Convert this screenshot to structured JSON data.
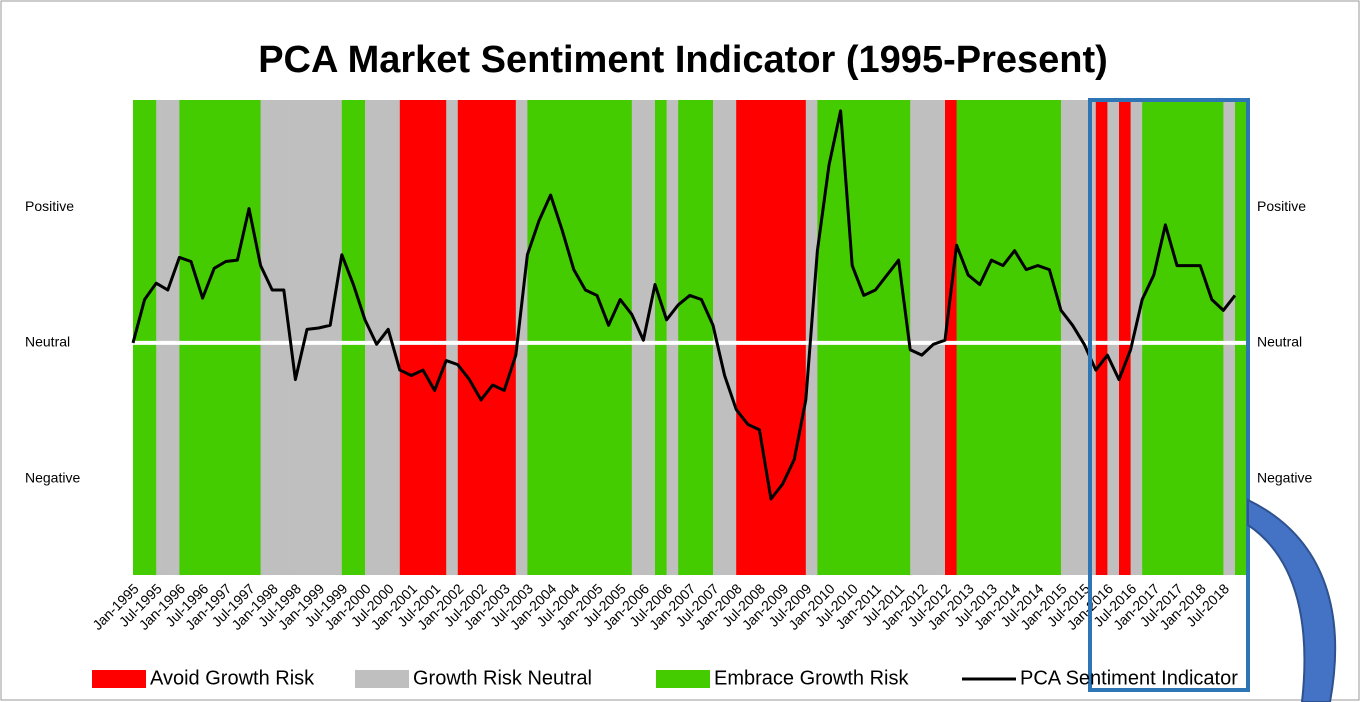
{
  "chart_data": {
    "type": "line",
    "title": "PCA Market Sentiment Indicator   (1995-Present)",
    "categories": [
      "Jan-1995",
      null,
      "Jul-1995",
      null,
      "Jan-1996",
      null,
      "Jul-1996",
      null,
      "Jan-1997",
      null,
      "Jul-1997",
      null,
      "Jan-1998",
      null,
      "Jul-1998",
      null,
      "Jan-1999",
      null,
      "Jul-1999",
      null,
      "Jan-2000",
      null,
      "Jul-2000",
      null,
      "Jan-2001",
      null,
      "Jul-2001",
      null,
      "Jan-2002",
      null,
      "Jul-2002",
      null,
      "Jan-2003",
      null,
      "Jul-2003",
      null,
      "Jan-2004",
      null,
      "Jul-2004",
      null,
      "Jan-2005",
      null,
      "Jul-2005",
      null,
      "Jan-2006",
      null,
      "Jul-2006",
      null,
      "Jan-2007",
      null,
      "Jul-2007",
      null,
      "Jan-2008",
      null,
      "Jul-2008",
      null,
      "Jan-2009",
      null,
      "Jul-2009",
      null,
      "Jan-2010",
      null,
      "Jul-2010",
      null,
      "Jan-2011",
      null,
      "Jul-2011",
      null,
      "Jan-2012",
      null,
      "Jul-2012",
      null,
      "Jan-2013",
      null,
      "Jul-2013",
      null,
      "Jan-2014",
      null,
      "Jul-2014",
      null,
      "Jan-2015",
      null,
      "Jul-2015",
      null,
      "Jan-2016",
      null,
      "Jul-2016",
      null,
      "Jan-2017",
      null,
      "Jul-2017",
      null,
      "Jan-2018",
      null,
      "Jul-2018",
      null
    ],
    "series": [
      {
        "name": "PCA Sentiment Indicator",
        "color": "#000000",
        "values": [
          0.0,
          0.32,
          0.44,
          0.39,
          0.63,
          0.6,
          0.33,
          0.55,
          0.6,
          0.61,
          0.99,
          0.57,
          0.39,
          0.39,
          -0.27,
          0.1,
          0.11,
          0.13,
          0.65,
          0.43,
          0.17,
          -0.01,
          0.1,
          -0.2,
          -0.24,
          -0.2,
          -0.35,
          -0.13,
          -0.16,
          -0.27,
          -0.42,
          -0.31,
          -0.35,
          -0.09,
          0.65,
          0.9,
          1.09,
          0.83,
          0.54,
          0.39,
          0.35,
          0.13,
          0.32,
          0.21,
          0.02,
          0.43,
          0.17,
          0.28,
          0.35,
          0.32,
          0.13,
          -0.24,
          -0.49,
          -0.6,
          -0.64,
          -1.15,
          -1.04,
          -0.86,
          -0.42,
          0.68,
          1.31,
          1.71,
          0.57,
          0.35,
          0.39,
          0.5,
          0.61,
          -0.05,
          -0.09,
          -0.01,
          0.02,
          0.72,
          0.5,
          0.43,
          0.61,
          0.57,
          0.68,
          0.54,
          0.57,
          0.54,
          0.24,
          0.13,
          -0.01,
          -0.2,
          -0.09,
          -0.27,
          -0.05,
          0.32,
          0.5,
          0.87,
          0.57,
          0.57,
          0.57,
          0.32,
          0.24,
          0.35
        ]
      }
    ],
    "bands": [
      {
        "name": "Avoid Growth Risk",
        "color": "#ff0000"
      },
      {
        "name": "Growth Risk Neutral",
        "color": "#bfbfbf"
      },
      {
        "name": "Embrace Growth Risk",
        "color": "#44cc00"
      }
    ],
    "regime": [
      "Embrace Growth Risk",
      "Embrace Growth Risk",
      "Growth Risk Neutral",
      "Growth Risk Neutral",
      "Embrace Growth Risk",
      "Embrace Growth Risk",
      "Embrace Growth Risk",
      "Embrace Growth Risk",
      "Embrace Growth Risk",
      "Embrace Growth Risk",
      "Embrace Growth Risk",
      "Growth Risk Neutral",
      "Growth Risk Neutral",
      "Growth Risk Neutral",
      "Growth Risk Neutral",
      "Growth Risk Neutral",
      "Growth Risk Neutral",
      "Growth Risk Neutral",
      "Embrace Growth Risk",
      "Embrace Growth Risk",
      "Growth Risk Neutral",
      "Growth Risk Neutral",
      "Growth Risk Neutral",
      "Avoid Growth Risk",
      "Avoid Growth Risk",
      "Avoid Growth Risk",
      "Avoid Growth Risk",
      "Growth Risk Neutral",
      "Avoid Growth Risk",
      "Avoid Growth Risk",
      "Avoid Growth Risk",
      "Avoid Growth Risk",
      "Avoid Growth Risk",
      "Growth Risk Neutral",
      "Embrace Growth Risk",
      "Embrace Growth Risk",
      "Embrace Growth Risk",
      "Embrace Growth Risk",
      "Embrace Growth Risk",
      "Embrace Growth Risk",
      "Embrace Growth Risk",
      "Embrace Growth Risk",
      "Embrace Growth Risk",
      "Growth Risk Neutral",
      "Growth Risk Neutral",
      "Embrace Growth Risk",
      "Growth Risk Neutral",
      "Embrace Growth Risk",
      "Embrace Growth Risk",
      "Embrace Growth Risk",
      "Growth Risk Neutral",
      "Growth Risk Neutral",
      "Avoid Growth Risk",
      "Avoid Growth Risk",
      "Avoid Growth Risk",
      "Avoid Growth Risk",
      "Avoid Growth Risk",
      "Avoid Growth Risk",
      "Growth Risk Neutral",
      "Embrace Growth Risk",
      "Embrace Growth Risk",
      "Embrace Growth Risk",
      "Embrace Growth Risk",
      "Embrace Growth Risk",
      "Embrace Growth Risk",
      "Embrace Growth Risk",
      "Embrace Growth Risk",
      "Growth Risk Neutral",
      "Growth Risk Neutral",
      "Growth Risk Neutral",
      "Avoid Growth Risk",
      "Embrace Growth Risk",
      "Embrace Growth Risk",
      "Embrace Growth Risk",
      "Embrace Growth Risk",
      "Embrace Growth Risk",
      "Embrace Growth Risk",
      "Embrace Growth Risk",
      "Embrace Growth Risk",
      "Embrace Growth Risk",
      "Growth Risk Neutral",
      "Growth Risk Neutral",
      "Growth Risk Neutral",
      "Avoid Growth Risk",
      "Growth Risk Neutral",
      "Avoid Growth Risk",
      "Growth Risk Neutral",
      "Embrace Growth Risk",
      "Embrace Growth Risk",
      "Embrace Growth Risk",
      "Embrace Growth Risk",
      "Embrace Growth Risk",
      "Embrace Growth Risk",
      "Embrace Growth Risk",
      "Growth Risk Neutral",
      "Embrace Growth Risk"
    ],
    "ylim": [
      -1.71,
      1.79
    ],
    "yticks": [
      {
        "value": 1,
        "label": "Positive"
      },
      {
        "value": 0,
        "label": "Neutral"
      },
      {
        "value": -1,
        "label": "Negative"
      }
    ]
  }
}
